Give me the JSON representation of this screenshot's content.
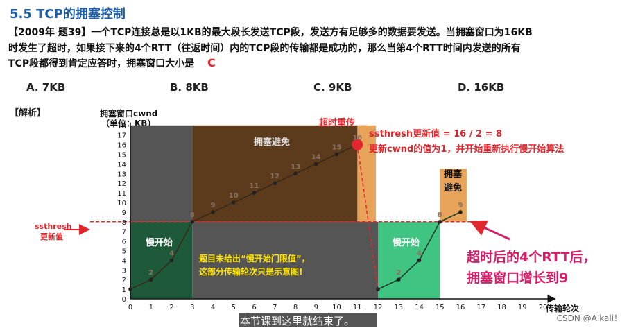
{
  "title": "5.5 TCP的拥塞控制",
  "question": {
    "line1": "【2009年 题39】一个TCP连接总是以1KB的最大段长发送TCP段，发送方有足够多的数据要发送。当拥塞窗口为16KB",
    "line2": "时发生了超时，如果接下来的4个RTT（往返时间）内的TCP段的传输都是成功的，那么当第4个RTT时间内发送的所有",
    "line3": "TCP段都得到肯定应答时，拥塞窗口大小是",
    "answer": "C"
  },
  "options": [
    "A. 7KB",
    "B. 8KB",
    "C. 9KB",
    "D. 16KB"
  ],
  "analysis_label": "【解析】",
  "y_axis_title_1": "拥塞窗口cwnd",
  "y_axis_title_2": "（单位：KB）",
  "x_axis_title": "传输轮次",
  "ssthresh_label_1": "ssthresh",
  "ssthresh_label_2": "更新值",
  "timeout_label": "超时重传",
  "ssthresh_update": "ssthresh更新值 = 16 / 2 = 8",
  "cwnd_update": "更新cwnd的值为1，并开始重新执行慢开始算法",
  "region_labels": {
    "slow_start_1": "慢开始",
    "congestion_avoid_1": "拥塞避免",
    "slow_start_2": "慢开始",
    "congestion_avoid_2a": "拥塞",
    "congestion_avoid_2b": "避免"
  },
  "note_line1": "题目未给出“慢开始门限值”，",
  "note_line2": "这部分传输轮次只是示意图!",
  "result_line1": "超时后的4个RTT后，",
  "result_line2": "拥塞窗口增长到9",
  "watermark": "本节课到这里就结束了。",
  "csdn": "CSDN @Alkali！",
  "colors": {
    "title": "#1f5fa8",
    "red": "#e0282e",
    "pink": "#d4206a",
    "slow_dark": "#1e5a3a",
    "gray": "#555555",
    "brown": "#5c3a1c",
    "orange": "#e8a35a",
    "green": "#3fc482"
  },
  "chart_data": {
    "type": "line",
    "xlabel": "传输轮次",
    "ylabel": "拥塞窗口cwnd（单位：KB）",
    "x_ticks": [
      0,
      1,
      2,
      3,
      4,
      5,
      6,
      7,
      8,
      9,
      10,
      11,
      12,
      13,
      14,
      15,
      16,
      17,
      18,
      19,
      20
    ],
    "y_ticks": [
      0,
      1,
      2,
      3,
      4,
      5,
      6,
      7,
      8,
      9,
      10,
      11,
      12,
      13,
      14,
      15,
      16,
      17,
      18
    ],
    "ylim": [
      0,
      18
    ],
    "ssthresh_line": 8,
    "series": [
      {
        "x": [
          0,
          1,
          2,
          3,
          4,
          5,
          6,
          7,
          8,
          9,
          10,
          11
        ],
        "y": [
          1,
          2,
          4,
          8,
          9,
          10,
          11,
          12,
          13,
          14,
          15,
          16
        ]
      },
      {
        "x": [
          12,
          13,
          14,
          15,
          16
        ],
        "y": [
          1,
          2,
          4,
          8,
          9
        ]
      }
    ],
    "point_labels": [
      {
        "x": 1,
        "y": 2,
        "t": "2"
      },
      {
        "x": 2,
        "y": 4,
        "t": "4"
      },
      {
        "x": 3,
        "y": 8,
        "t": "8"
      },
      {
        "x": 4,
        "y": 9,
        "t": "9"
      },
      {
        "x": 5,
        "y": 10,
        "t": "10"
      },
      {
        "x": 6,
        "y": 11,
        "t": "11"
      },
      {
        "x": 7,
        "y": 12,
        "t": "12"
      },
      {
        "x": 8,
        "y": 13,
        "t": "13"
      },
      {
        "x": 9,
        "y": 14,
        "t": "14"
      },
      {
        "x": 10,
        "y": 15,
        "t": "15"
      },
      {
        "x": 11,
        "y": 16,
        "t": "16"
      },
      {
        "x": 13,
        "y": 2,
        "t": "2"
      },
      {
        "x": 14,
        "y": 4,
        "t": "4"
      },
      {
        "x": 15,
        "y": 8,
        "t": "8"
      },
      {
        "x": 16,
        "y": 9,
        "t": "9"
      }
    ]
  }
}
